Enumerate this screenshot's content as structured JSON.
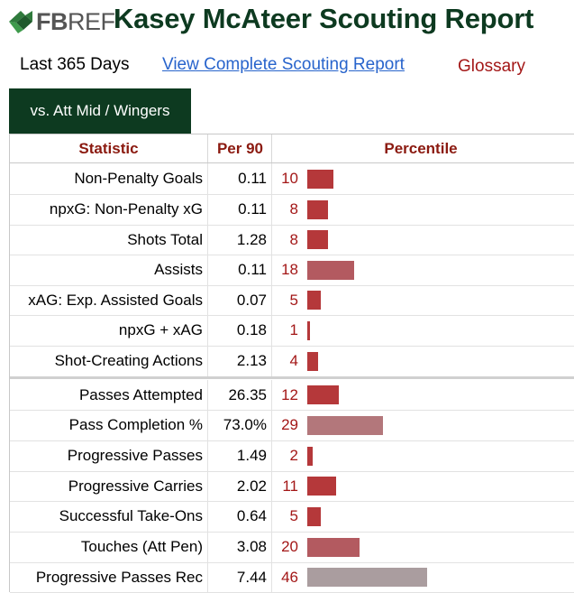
{
  "logo": {
    "part1": "FB",
    "part2": "REF"
  },
  "title": "Kasey McAteer Scouting Report",
  "links": {
    "period": "Last 365 Days",
    "full_report": "View Complete Scouting Report",
    "glossary": "Glossary"
  },
  "tab": {
    "label": "vs. Att Mid / Wingers"
  },
  "table": {
    "headers": [
      "Statistic",
      "Per 90",
      "Percentile"
    ],
    "rows": [
      {
        "stat": "Non-Penalty Goals",
        "per90": "0.11",
        "pct": "10"
      },
      {
        "stat": "npxG: Non-Penalty xG",
        "per90": "0.11",
        "pct": "8"
      },
      {
        "stat": "Shots Total",
        "per90": "1.28",
        "pct": "8"
      },
      {
        "stat": "Assists",
        "per90": "0.11",
        "pct": "18"
      },
      {
        "stat": "xAG: Exp. Assisted Goals",
        "per90": "0.07",
        "pct": "5"
      },
      {
        "stat": "npxG + xAG",
        "per90": "0.18",
        "pct": "1"
      },
      {
        "stat": "Shot-Creating Actions",
        "per90": "2.13",
        "pct": "4"
      },
      {
        "stat": "Passes Attempted",
        "per90": "26.35",
        "pct": "12"
      },
      {
        "stat": "Pass Completion %",
        "per90": "73.0%",
        "pct": "29"
      },
      {
        "stat": "Progressive Passes",
        "per90": "1.49",
        "pct": "2"
      },
      {
        "stat": "Progressive Carries",
        "per90": "2.02",
        "pct": "11"
      },
      {
        "stat": "Successful Take-Ons",
        "per90": "0.64",
        "pct": "5"
      },
      {
        "stat": "Touches (Att Pen)",
        "per90": "3.08",
        "pct": "20"
      },
      {
        "stat": "Progressive Passes Rec",
        "per90": "7.44",
        "pct": "46"
      }
    ]
  },
  "colors": {
    "brand_green": "#0d3a20",
    "pct_text": "#a31717",
    "bar_low": "#b5383a",
    "bar_mid": "#b3777b",
    "bar_high": "#aa9d9f"
  }
}
